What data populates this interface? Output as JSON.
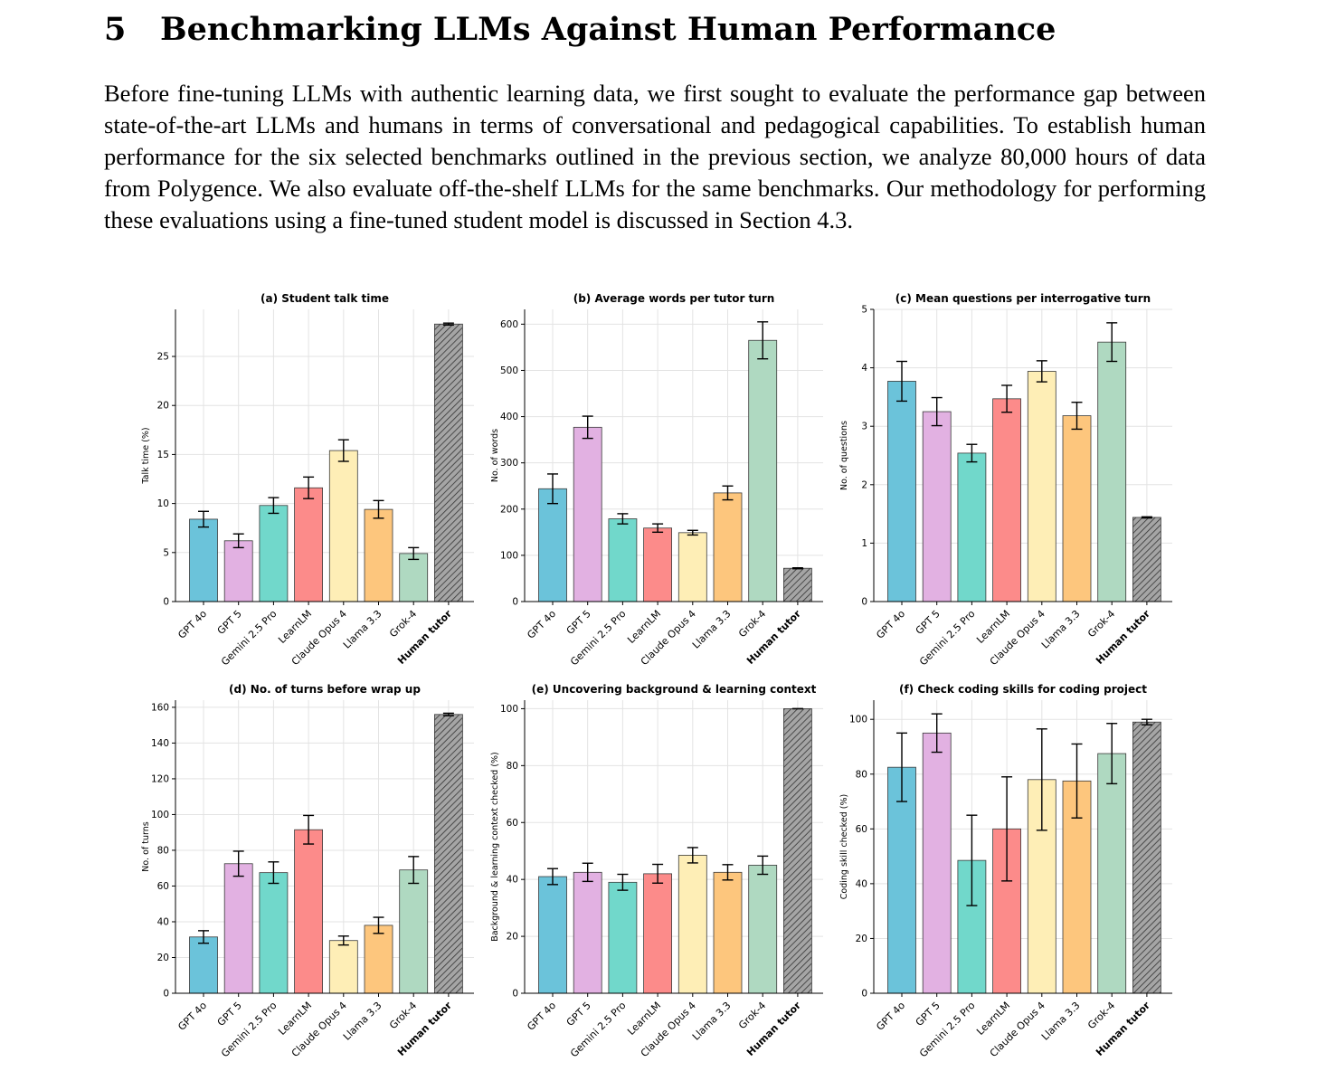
{
  "section": {
    "number": "5",
    "title": "Benchmarking LLMs Against Human Performance",
    "paragraph": "Before fine-tuning LLMs with authentic learning data, we first sought to evaluate the performance gap between state-of-the-art LLMs and humans in terms of conversational and pedagogical capabilities. To establish human performance for the six selected benchmarks outlined in the previous section, we analyze 80,000 hours of data from Polygence. We also evaluate off-the-shelf LLMs for the same benchmarks. Our methodology for performing these evaluations using a fine-tuned student model is discussed in Section 4.3."
  },
  "colors": [
    "#6bc3da",
    "#e2b1e2",
    "#71d8cb",
    "#fc8b8a",
    "#feeeb6",
    "#fdc67d",
    "#afd9c1",
    "#a5a5a5"
  ],
  "categories": [
    "GPT 4o",
    "GPT 5",
    "Gemini 2.5 Pro",
    "LearnLM",
    "Claude Opus 4",
    "Llama 3.3",
    "Grok-4",
    "Human tutor"
  ],
  "chart_data": [
    {
      "type": "bar",
      "title": "(a) Student talk time",
      "ylabel": "Talk time (%)",
      "xlabel": "",
      "ylim": [
        0,
        29.8
      ],
      "yticks": [
        0,
        5,
        10,
        15,
        20,
        25
      ],
      "categories": [
        "GPT 4o",
        "GPT 5",
        "Gemini 2.5 Pro",
        "LearnLM",
        "Claude Opus 4",
        "Llama 3.3",
        "Grok-4",
        "Human tutor"
      ],
      "values": [
        8.4,
        6.2,
        9.8,
        11.6,
        15.4,
        9.4,
        4.9,
        28.3
      ],
      "errors": [
        0.8,
        0.7,
        0.8,
        1.1,
        1.1,
        0.9,
        0.6,
        0.1
      ],
      "hatched_category": "Human tutor",
      "grid": true
    },
    {
      "type": "bar",
      "title": "(b) Average words per tutor turn",
      "ylabel": "No. of words",
      "xlabel": "",
      "ylim": [
        0,
        632
      ],
      "yticks": [
        0,
        100,
        200,
        300,
        400,
        500,
        600
      ],
      "categories": [
        "GPT 4o",
        "GPT 5",
        "Gemini 2.5 Pro",
        "LearnLM",
        "Claude Opus 4",
        "Llama 3.3",
        "Grok-4",
        "Human tutor"
      ],
      "values": [
        244,
        377,
        179,
        159,
        149,
        235,
        565,
        72
      ],
      "errors": [
        32,
        24,
        11,
        9,
        5,
        15,
        40,
        1
      ],
      "hatched_category": "Human tutor",
      "grid": true
    },
    {
      "type": "bar",
      "title": "(c) Mean questions per interrogative turn",
      "ylabel": "No. of questions",
      "xlabel": "",
      "ylim": [
        0,
        5
      ],
      "yticks": [
        0,
        1,
        2,
        3,
        4,
        5
      ],
      "categories": [
        "GPT 4o",
        "GPT 5",
        "Gemini 2.5 Pro",
        "LearnLM",
        "Claude Opus 4",
        "Llama 3.3",
        "Grok-4",
        "Human tutor"
      ],
      "values": [
        3.77,
        3.25,
        2.54,
        3.47,
        3.94,
        3.18,
        4.44,
        1.44
      ],
      "errors": [
        0.34,
        0.24,
        0.15,
        0.23,
        0.18,
        0.23,
        0.33,
        0.01
      ],
      "hatched_category": "Human tutor",
      "grid": true
    },
    {
      "type": "bar",
      "title": "(d) No. of turns before wrap up",
      "ylabel": "No. of turns",
      "xlabel": "",
      "ylim": [
        0,
        164
      ],
      "yticks": [
        0,
        20,
        40,
        60,
        80,
        100,
        120,
        140,
        160
      ],
      "categories": [
        "GPT 4o",
        "GPT 5",
        "Gemini 2.5 Pro",
        "LearnLM",
        "Claude Opus 4",
        "Llama 3.3",
        "Grok-4",
        "Human tutor"
      ],
      "values": [
        31.5,
        72.5,
        67.5,
        91.5,
        29.5,
        38,
        69,
        156
      ],
      "errors": [
        3.5,
        7,
        6,
        8,
        2.5,
        4.5,
        7.5,
        0.7
      ],
      "hatched_category": "Human tutor",
      "grid": true
    },
    {
      "type": "bar",
      "title": "(e) Uncovering background & learning context",
      "ylabel": "Background & learning context checked (%)",
      "xlabel": "",
      "ylim": [
        0,
        103
      ],
      "yticks": [
        0,
        20,
        40,
        60,
        80,
        100
      ],
      "categories": [
        "GPT 4o",
        "GPT 5",
        "Gemini 2.5 Pro",
        "LearnLM",
        "Claude Opus 4",
        "Llama 3.3",
        "Grok-4",
        "Human tutor"
      ],
      "values": [
        41,
        42.5,
        39,
        42,
        48.5,
        42.5,
        45,
        100
      ],
      "errors": [
        2.8,
        3.2,
        2.8,
        3.3,
        2.7,
        2.7,
        3.2,
        0
      ],
      "hatched_category": "Human tutor",
      "grid": true
    },
    {
      "type": "bar",
      "title": "(f) Check coding skills for coding project",
      "ylabel": "Coding skill checked (%)",
      "xlabel": "",
      "ylim": [
        0,
        107
      ],
      "yticks": [
        0,
        20,
        40,
        60,
        80,
        100
      ],
      "categories": [
        "GPT 4o",
        "GPT 5",
        "Gemini 2.5 Pro",
        "LearnLM",
        "Claude Opus 4",
        "Llama 3.3",
        "Grok-4",
        "Human tutor"
      ],
      "values": [
        82.5,
        95,
        48.5,
        60,
        78,
        77.5,
        87.5,
        99
      ],
      "errors": [
        12.5,
        7,
        16.5,
        19,
        18.5,
        13.5,
        11,
        1
      ],
      "hatched_category": "Human tutor",
      "grid": true
    }
  ]
}
